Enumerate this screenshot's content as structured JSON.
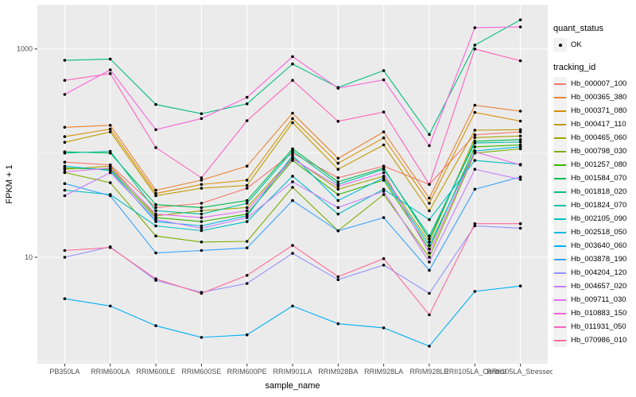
{
  "legend": {
    "quant_status": {
      "title": "quant_status",
      "items": [
        {
          "label": "OK",
          "symbol": "black-point"
        }
      ]
    },
    "tracking_id": {
      "title": "tracking_id"
    }
  },
  "style": {
    "panel_background": "#EBEBEB",
    "gridline_color": "#FFFFFF",
    "tick_color": "#333333",
    "tick_label_color": "#4D4D4D",
    "legend_key_background": "#F2F2F2",
    "point_color": "#000000"
  },
  "chart_data": {
    "type": "line",
    "xlabel": "sample_name",
    "ylabel": "FPKM + 1",
    "y_scale": "log10",
    "y_tick_labels": [
      "1000",
      "10"
    ],
    "y_tick_values": [
      1000,
      10
    ],
    "y_minor_gridline_values": [
      100,
      1
    ],
    "ylim_log": [
      0.55,
      3.42
    ],
    "grid": true,
    "legend_position": "right",
    "marker": {
      "shape": "point",
      "color": "#000000",
      "meaning": "quant_status OK"
    },
    "categories": [
      "PB350LA",
      "RRIM600LA",
      "RRIM600LE",
      "RRIM600SE",
      "RRIM600PE",
      "RRIM901LA",
      "RRIM928BA",
      "RRIM928LA",
      "RRIM928LE",
      "RRII105LA_Control",
      "RRII105LA_Stressed"
    ],
    "series": [
      {
        "name": "Hb_000007_100",
        "color": "#F8766D",
        "values": [
          82,
          77,
          30,
          33,
          46,
          100,
          58,
          75,
          50,
          150,
          160
        ]
      },
      {
        "name": "Hb_000365_380",
        "color": "#EA8331",
        "values": [
          177,
          185,
          44,
          55,
          75,
          242,
          89,
          160,
          37,
          288,
          253
        ]
      },
      {
        "name": "Hb_000371_080",
        "color": "#D89000",
        "values": [
          144,
          170,
          41,
          50,
          55,
          215,
          80,
          140,
          33,
          246,
          203
        ]
      },
      {
        "name": "Hb_000417_110",
        "color": "#C09B00",
        "values": [
          127,
          160,
          39,
          46,
          49,
          196,
          70,
          120,
          28,
          166,
          168
        ]
      },
      {
        "name": "Hb_000465_060",
        "color": "#A3A500",
        "values": [
          70,
          75,
          25,
          28,
          30,
          90,
          45,
          60,
          14,
          141,
          146
        ]
      },
      {
        "name": "Hb_000798_030",
        "color": "#7CAE00",
        "values": [
          65,
          52,
          16,
          14,
          14.2,
          47,
          18,
          40,
          10,
          100,
          110
        ]
      },
      {
        "name": "Hb_001257_080",
        "color": "#39B600",
        "values": [
          72,
          70,
          24,
          22,
          26,
          85,
          40,
          55,
          12,
          115,
          120
        ]
      },
      {
        "name": "Hb_001584_070",
        "color": "#00BB4E",
        "values": [
          103,
          100,
          32,
          30,
          35,
          110,
          53,
          72,
          15,
          130,
          135
        ]
      },
      {
        "name": "Hb_001818_020",
        "color": "#00BF7D",
        "values": [
          780,
          800,
          293,
          239,
          297,
          718,
          427,
          620,
          151,
          1090,
          1905
        ]
      },
      {
        "name": "Hb_001824_070",
        "color": "#00C1A3",
        "values": [
          100,
          104,
          28,
          26,
          33,
          105,
          50,
          70,
          16,
          125,
          128
        ]
      },
      {
        "name": "Hb_002105_090",
        "color": "#00BFC4",
        "values": [
          44,
          40,
          20,
          18,
          22,
          60,
          26,
          45,
          23,
          85,
          78
        ]
      },
      {
        "name": "Hb_002518_050",
        "color": "#00BAE0",
        "values": [
          75,
          68,
          22,
          20,
          25,
          95,
          35,
          58,
          13,
          105,
          115
        ]
      },
      {
        "name": "Hb_003640_060",
        "color": "#00B0F6",
        "values": [
          4.0,
          3.4,
          2.2,
          1.7,
          1.8,
          3.4,
          2.3,
          2.1,
          1.4,
          4.7,
          5.3
        ]
      },
      {
        "name": "Hb_003878_190",
        "color": "#35A2FF",
        "values": [
          51,
          39,
          11,
          11.6,
          12.3,
          35,
          17.9,
          24,
          7.5,
          45,
          59
        ]
      },
      {
        "name": "Hb_004204_120",
        "color": "#9590FF",
        "values": [
          10,
          12.6,
          6.0,
          4.6,
          5.6,
          10.9,
          6.1,
          8.4,
          4.5,
          20,
          19
        ]
      },
      {
        "name": "Hb_004657_020",
        "color": "#C77CFF",
        "values": [
          39,
          65,
          23,
          19,
          24,
          53,
          30,
          43,
          9,
          70,
          56
        ]
      },
      {
        "name": "Hb_009711_030",
        "color": "#E76BF3",
        "values": [
          66,
          72,
          26,
          24,
          28,
          88,
          48,
          65,
          11,
          103,
          77
        ]
      },
      {
        "name": "Hb_010883_150",
        "color": "#FA62DB",
        "values": [
          366,
          630,
          168,
          215,
          343,
          845,
          420,
          505,
          118,
          1600,
          1630
        ]
      },
      {
        "name": "Hb_011931_050",
        "color": "#FF62BC",
        "values": [
          500,
          580,
          113,
          58,
          205,
          500,
          202,
          248,
          50,
          1000,
          770
        ]
      },
      {
        "name": "Hb_070986_010",
        "color": "#FF6A98",
        "values": [
          11.6,
          12.4,
          6.2,
          4.5,
          6.7,
          13,
          6.5,
          9.7,
          2.8,
          21,
          21
        ]
      }
    ]
  }
}
